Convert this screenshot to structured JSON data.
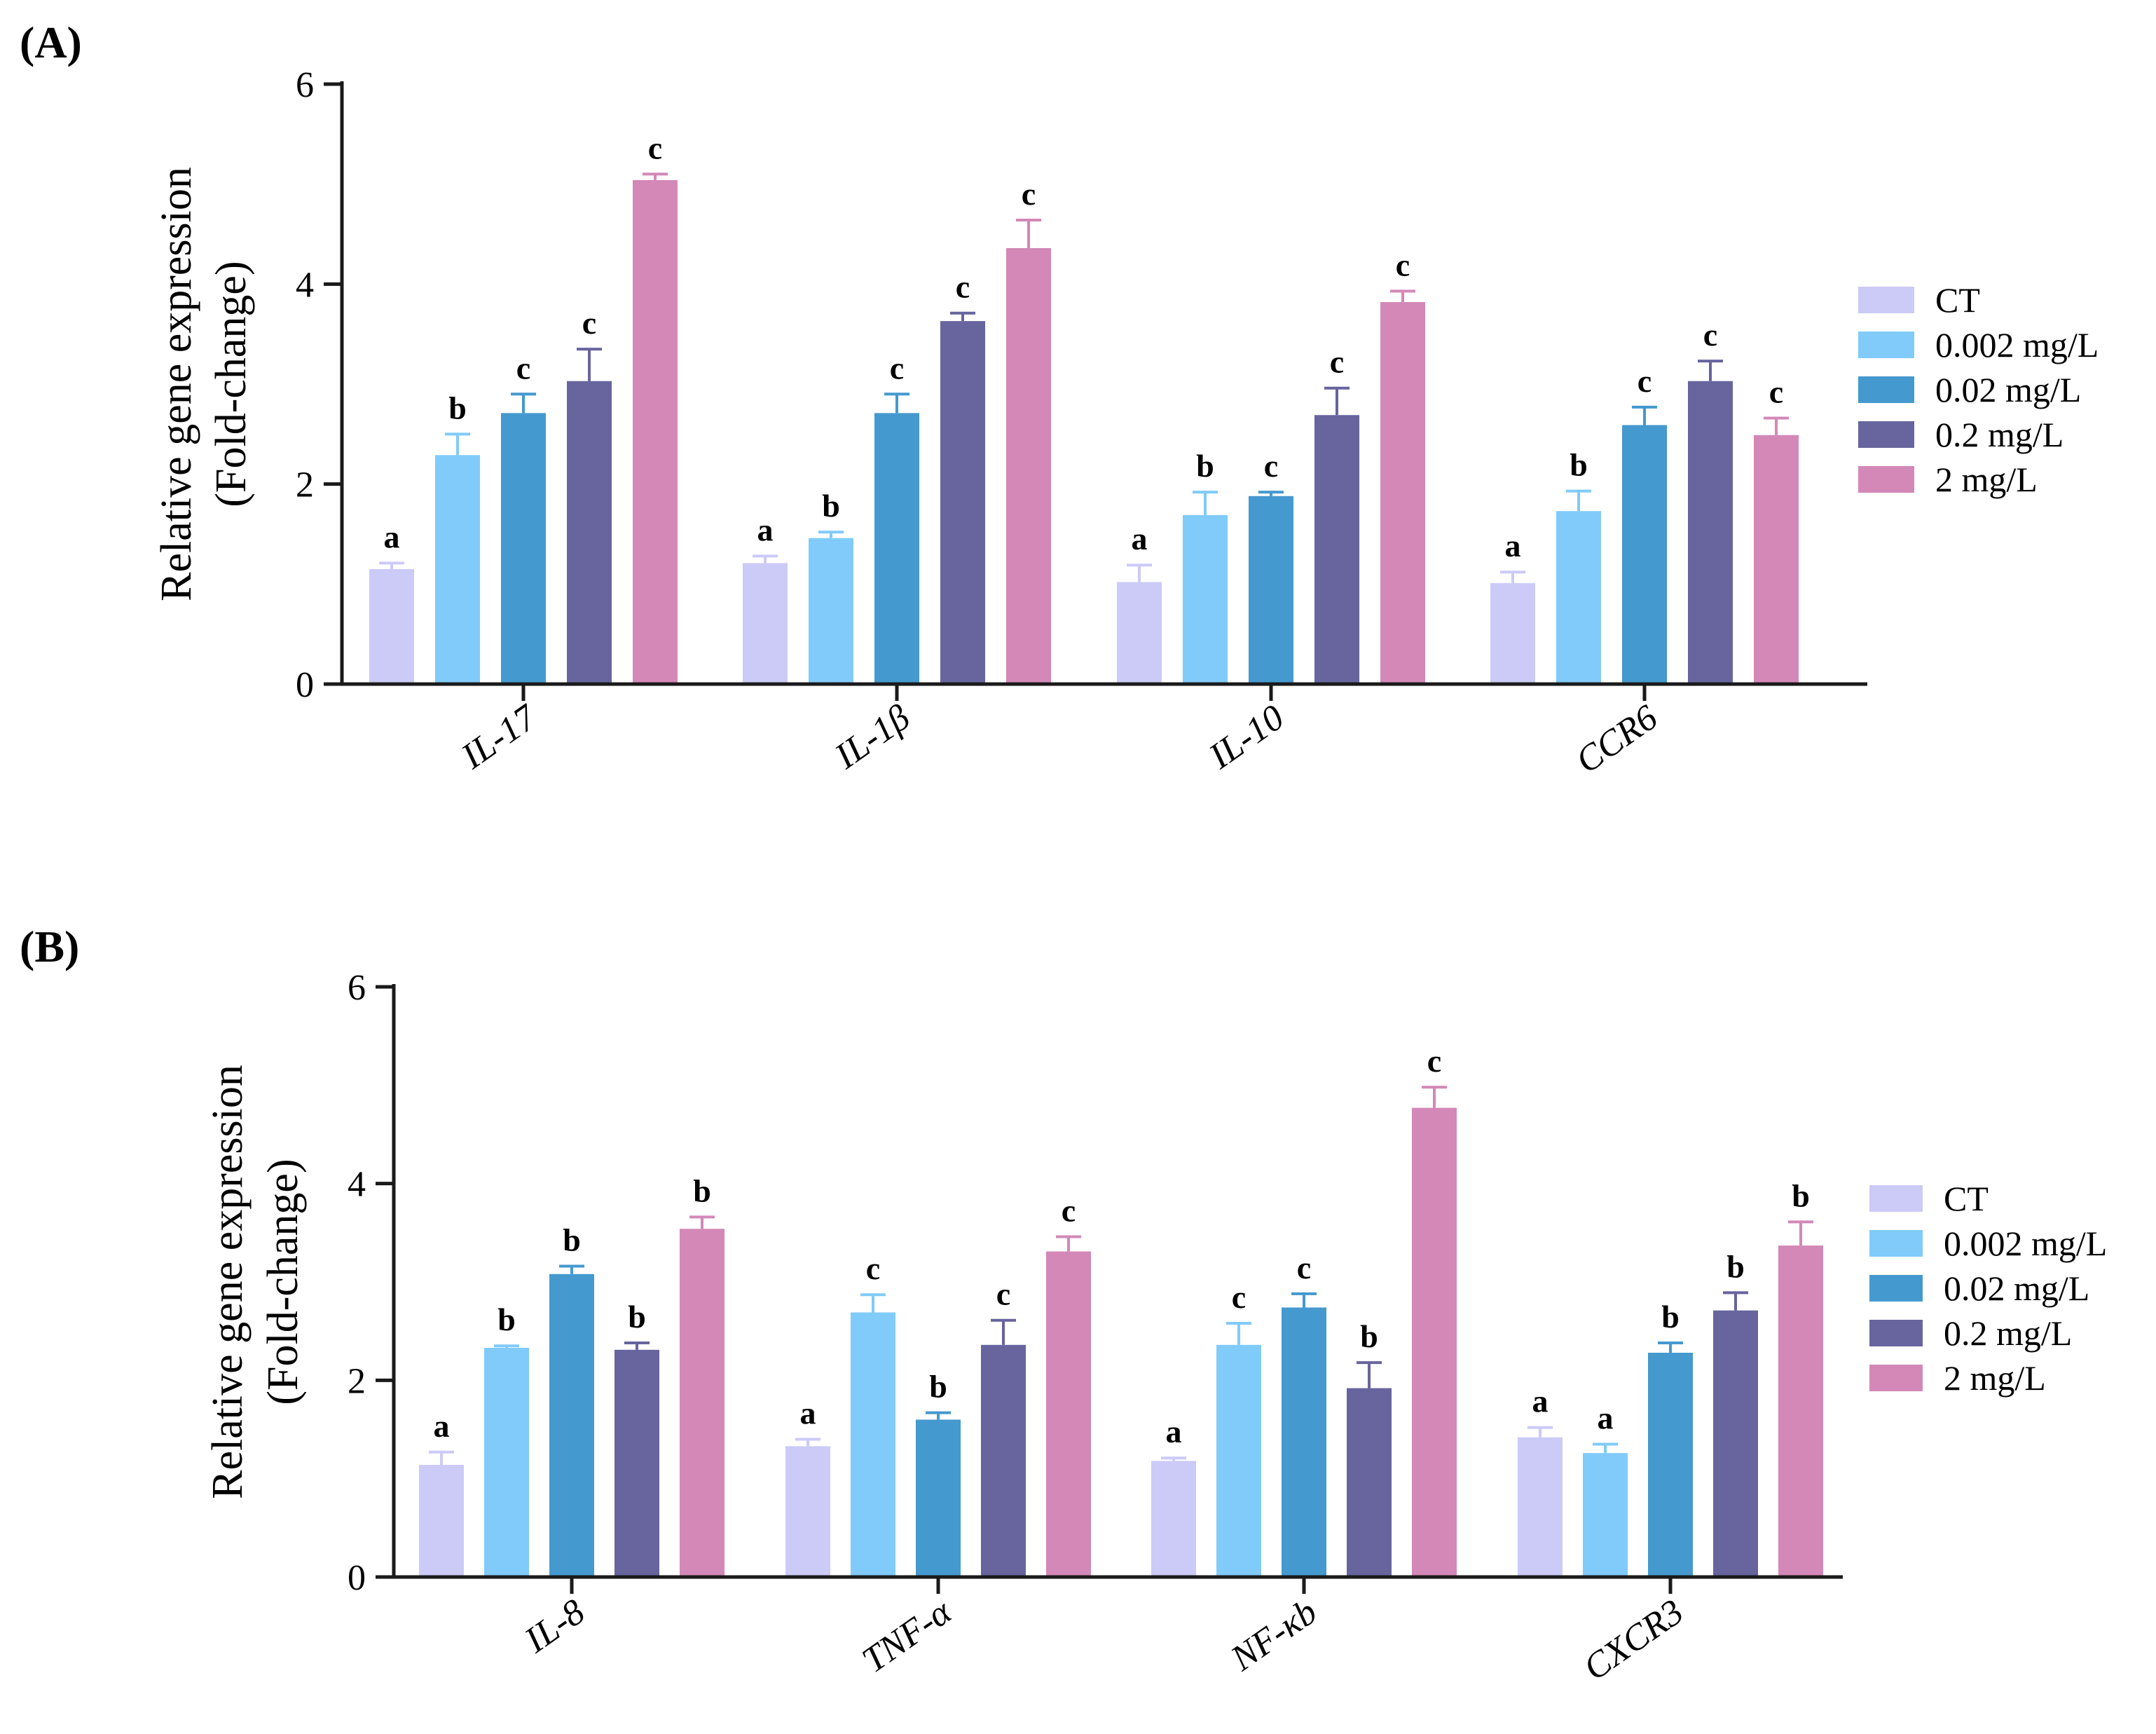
{
  "chart_data": [
    {
      "panel": "(A)",
      "type": "bar",
      "ylabel": [
        "Relative gene expression",
        "(Fold-change)"
      ],
      "ylim": [
        0,
        6
      ],
      "yticks": [
        "0",
        "2",
        "4",
        "6"
      ],
      "categories": [
        "IL-17",
        "IL-1β",
        "IL-10",
        "CCR6"
      ],
      "legend": "right",
      "series": [
        {
          "name": "CT",
          "color": "#cccaf7",
          "values": [
            1.15,
            1.21,
            1.02,
            1.01
          ],
          "errors": [
            0.06,
            0.07,
            0.17,
            0.11
          ],
          "sig": [
            "a",
            "a",
            "a",
            "a"
          ]
        },
        {
          "name": "0.002 mg/L",
          "color": "#80cbfa",
          "values": [
            2.29,
            1.46,
            1.69,
            1.73
          ],
          "errors": [
            0.21,
            0.06,
            0.23,
            0.2
          ],
          "sig": [
            "b",
            "b",
            "b",
            "b"
          ]
        },
        {
          "name": "0.02 mg/L",
          "color": "#4499cf",
          "values": [
            2.71,
            2.71,
            1.88,
            2.59
          ],
          "errors": [
            0.19,
            0.19,
            0.04,
            0.18
          ],
          "sig": [
            "c",
            "c",
            "c",
            "c"
          ]
        },
        {
          "name": "0.2 mg/L",
          "color": "#67649e",
          "values": [
            3.03,
            3.63,
            2.69,
            3.03
          ],
          "errors": [
            0.32,
            0.08,
            0.27,
            0.2
          ],
          "sig": [
            "c",
            "c",
            "c",
            "c"
          ]
        },
        {
          "name": "2 mg/L",
          "color": "#d388b7",
          "values": [
            5.04,
            4.36,
            3.82,
            2.49
          ],
          "errors": [
            0.06,
            0.28,
            0.11,
            0.17
          ],
          "sig": [
            "c",
            "c",
            "c",
            "c"
          ]
        }
      ]
    },
    {
      "panel": "(B)",
      "type": "bar",
      "ylabel": [
        "Relative gene expression",
        "(Fold-change)"
      ],
      "ylim": [
        0,
        6
      ],
      "yticks": [
        "0",
        "2",
        "4",
        "6"
      ],
      "categories": [
        "IL-8",
        "TNF-α",
        "NF-κb",
        "CXCR3"
      ],
      "legend": "right",
      "series": [
        {
          "name": "CT",
          "color": "#cccaf7",
          "values": [
            1.14,
            1.33,
            1.18,
            1.42
          ],
          "errors": [
            0.13,
            0.07,
            0.03,
            0.1
          ],
          "sig": [
            "a",
            "a",
            "a",
            "a"
          ]
        },
        {
          "name": "0.002 mg/L",
          "color": "#80cbfa",
          "values": [
            2.33,
            2.69,
            2.36,
            1.26
          ],
          "errors": [
            0.02,
            0.18,
            0.22,
            0.09
          ],
          "sig": [
            "b",
            "c",
            "c",
            "a"
          ]
        },
        {
          "name": "0.02 mg/L",
          "color": "#4499cf",
          "values": [
            3.08,
            1.6,
            2.74,
            2.28
          ],
          "errors": [
            0.08,
            0.07,
            0.14,
            0.1
          ],
          "sig": [
            "b",
            "b",
            "c",
            "b"
          ]
        },
        {
          "name": "0.2 mg/L",
          "color": "#67649e",
          "values": [
            2.31,
            2.36,
            1.92,
            2.71
          ],
          "errors": [
            0.07,
            0.25,
            0.26,
            0.18
          ],
          "sig": [
            "b",
            "c",
            "b",
            "b"
          ]
        },
        {
          "name": "2 mg/L",
          "color": "#d388b7",
          "values": [
            3.54,
            3.31,
            4.77,
            3.37
          ],
          "errors": [
            0.12,
            0.15,
            0.21,
            0.24
          ],
          "sig": [
            "b",
            "c",
            "c",
            "b"
          ]
        }
      ]
    }
  ]
}
